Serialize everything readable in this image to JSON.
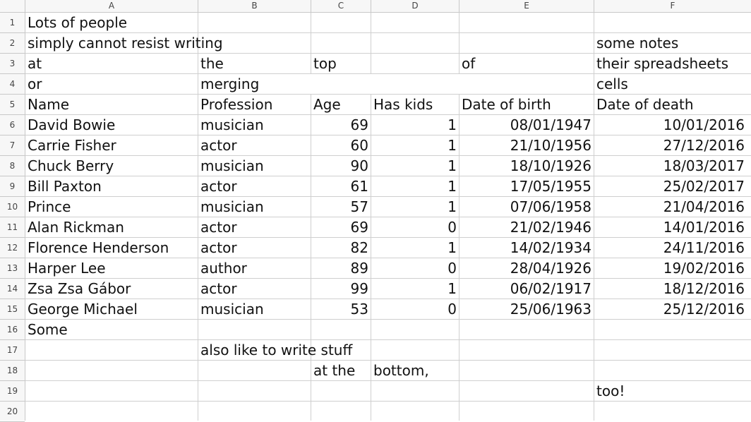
{
  "columns": [
    "A",
    "B",
    "C",
    "D",
    "E",
    "F"
  ],
  "rows": [
    "1",
    "2",
    "3",
    "4",
    "5",
    "6",
    "7",
    "8",
    "9",
    "10",
    "11",
    "12",
    "13",
    "14",
    "15",
    "16",
    "17",
    "18",
    "19",
    "20"
  ],
  "notes_top": {
    "r1_a": "Lots of people",
    "r2_a": "simply cannot resist writing",
    "r2_f": "some notes",
    "r3_a": "at",
    "r3_b": "the",
    "r3_c": "top",
    "r3_e": "of",
    "r3_f": "their spreadsheets",
    "r4_a": "or",
    "r4_b": "merging",
    "r4_f": "cells"
  },
  "table": {
    "headers": [
      "Name",
      "Profession",
      "Age",
      "Has kids",
      "Date of birth",
      "Date of death"
    ],
    "rows": [
      [
        "David Bowie",
        "musician",
        "69",
        "1",
        "08/01/1947",
        "10/01/2016"
      ],
      [
        "Carrie Fisher",
        "actor",
        "60",
        "1",
        "21/10/1956",
        "27/12/2016"
      ],
      [
        "Chuck Berry",
        "musician",
        "90",
        "1",
        "18/10/1926",
        "18/03/2017"
      ],
      [
        "Bill Paxton",
        "actor",
        "61",
        "1",
        "17/05/1955",
        "25/02/2017"
      ],
      [
        "Prince",
        "musician",
        "57",
        "1",
        "07/06/1958",
        "21/04/2016"
      ],
      [
        "Alan Rickman",
        "actor",
        "69",
        "0",
        "21/02/1946",
        "14/01/2016"
      ],
      [
        "Florence Henderson",
        "actor",
        "82",
        "1",
        "14/02/1934",
        "24/11/2016"
      ],
      [
        "Harper Lee",
        "author",
        "89",
        "0",
        "28/04/1926",
        "19/02/2016"
      ],
      [
        "Zsa Zsa Gábor",
        "actor",
        "99",
        "1",
        "06/02/1917",
        "18/12/2016"
      ],
      [
        "George Michael",
        "musician",
        "53",
        "0",
        "25/06/1963",
        "25/12/2016"
      ]
    ]
  },
  "notes_bottom": {
    "r16_a": "Some",
    "r17_b": "also like to write stuff",
    "r18_c": "at the",
    "r18_d": "bottom,",
    "r19_f": "too!"
  }
}
